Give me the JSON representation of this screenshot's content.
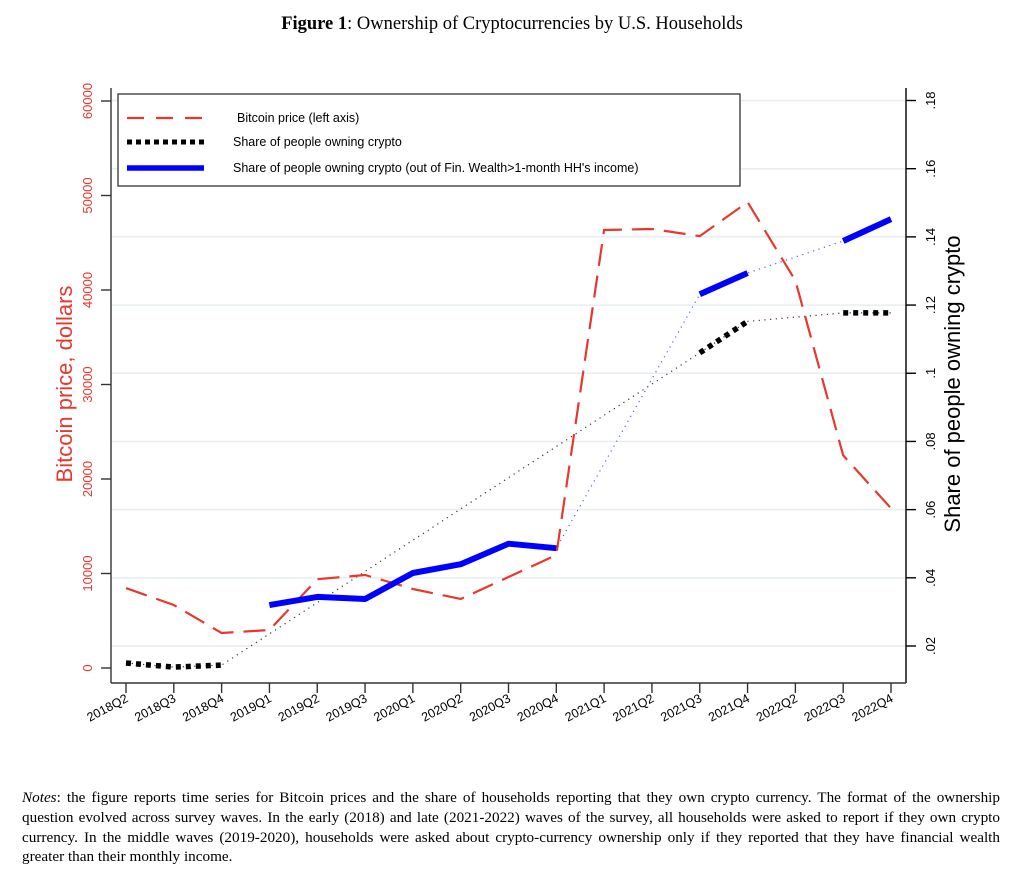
{
  "figure": {
    "label": "Figure 1",
    "title": ": Ownership of Cryptocurrencies by U.S. Households"
  },
  "notes": {
    "label": "Notes",
    "text": ": the figure reports time series for Bitcoin prices and the share of households reporting that they own crypto currency. The format of the ownership question evolved across survey waves. In the early (2018) and late (2021-2022) waves of the survey, all households were asked to report if they own crypto currency. In the middle waves (2019-2020), households were asked about crypto-currency ownership only if they reported that they have financial wealth greater than their monthly income."
  },
  "colors": {
    "bitcoin": "#e8382e",
    "share": "#000000",
    "share_fin": "#0000ff",
    "grid": "#e6eef0",
    "axis": "#333333",
    "left_axis_text": "#e8382e"
  },
  "chart_data": {
    "type": "line",
    "title": "Ownership of Cryptocurrencies by U.S. Households",
    "xlabel": "",
    "ylabel_left": "Bitcoin price, dollars",
    "ylabel_right": "Share of people owning crypto",
    "categories": [
      "2018Q2",
      "2018Q3",
      "2018Q4",
      "2019Q1",
      "2019Q2",
      "2019Q3",
      "2020Q1",
      "2020Q2",
      "2020Q3",
      "2020Q4",
      "2021Q1",
      "2021Q2",
      "2021Q3",
      "2021Q4",
      "2022Q2",
      "2022Q3",
      "2022Q4"
    ],
    "y_left": {
      "range": [
        0,
        60000
      ],
      "ticks": [
        0,
        10000,
        20000,
        30000,
        40000,
        50000,
        60000
      ],
      "tick_labels": [
        "0",
        "10000",
        "20000",
        "30000",
        "40000",
        "50000",
        "60000"
      ]
    },
    "y_right": {
      "range": [
        0.02,
        0.18
      ],
      "ticks": [
        0.02,
        0.04,
        0.06,
        0.08,
        0.1,
        0.12,
        0.14,
        0.16,
        0.18
      ],
      "tick_labels": [
        ".02",
        ".04",
        ".06",
        ".08",
        ".1",
        ".12",
        ".14",
        ".16",
        ".18"
      ]
    },
    "grid": true,
    "legend_position": "top-left",
    "series": [
      {
        "name": "Bitcoin price (left axis)",
        "axis": "left",
        "style": "dashed",
        "values": [
          8460,
          6670,
          3700,
          4020,
          9400,
          9840,
          8360,
          7300,
          9630,
          11960,
          46350,
          46450,
          45700,
          49300,
          41000,
          22500,
          16900
        ]
      },
      {
        "name": "Share of people owning crypto",
        "axis": "right",
        "style": "dotted-square",
        "values": [
          0.015,
          0.0138,
          0.0144,
          null,
          null,
          null,
          null,
          null,
          null,
          null,
          null,
          null,
          0.106,
          0.1152,
          null,
          0.1177,
          0.1177
        ]
      },
      {
        "name": "Share of people owning crypto (out of Fin. Wealth>1-month HH's income)",
        "axis": "right",
        "style": "solid",
        "values": [
          null,
          null,
          null,
          0.032,
          0.0344,
          0.0338,
          0.0414,
          0.044,
          0.05,
          0.0487,
          null,
          null,
          0.1232,
          0.1294,
          null,
          0.1388,
          0.1452
        ]
      }
    ]
  }
}
